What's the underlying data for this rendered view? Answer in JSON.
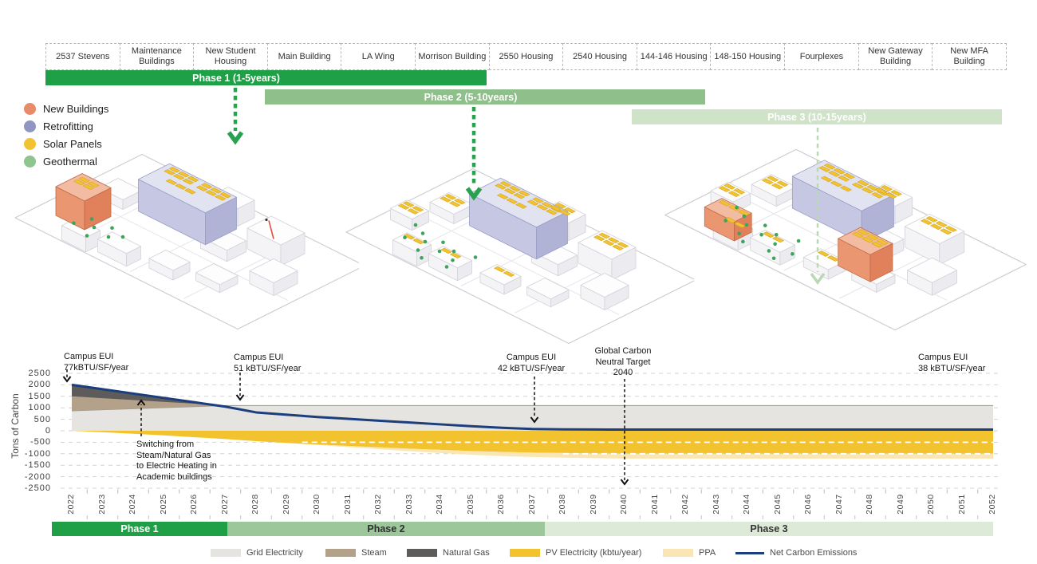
{
  "building_header": {
    "items": [
      "2537 Stevens",
      "Maintenance Buildings",
      "New Student Housing",
      "Main Building",
      "LA Wing",
      "Morrison Building",
      "2550 Housing",
      "2540 Housing",
      "144-146 Housing",
      "148-150 Housing",
      "Fourplexes",
      "New Gateway Building",
      "New MFA Building"
    ]
  },
  "phase_plan_top": [
    {
      "label": "Phase 1 (1-5years)",
      "color": "#1fa047"
    },
    {
      "label": "Phase 2 (5-10years)",
      "color": "#8fbf8b"
    },
    {
      "label": "Phase 3 (10-15years)",
      "color": "#cfe3c9"
    }
  ],
  "map_legend": {
    "items": [
      {
        "label": "New Buildings",
        "color": "#e78b69"
      },
      {
        "label": "Retrofitting",
        "color": "#9095c1"
      },
      {
        "label": "Solar Panels",
        "color": "#f2c330"
      },
      {
        "label": "Geothermal",
        "color": "#8ec58f"
      }
    ]
  },
  "chart_data": {
    "type": "area",
    "title": "",
    "xlabel": "",
    "ylabel": "Tons of Carbon",
    "ylim": [
      -2500,
      2500
    ],
    "ytick_step": 500,
    "grid": "dashed",
    "legend_position": "bottom",
    "x": [
      2022,
      2023,
      2024,
      2025,
      2026,
      2027,
      2028,
      2029,
      2030,
      2031,
      2032,
      2033,
      2034,
      2035,
      2036,
      2037,
      2038,
      2039,
      2040,
      2041,
      2042,
      2043,
      2044,
      2045,
      2046,
      2047,
      2048,
      2049,
      2050,
      2051,
      2052
    ],
    "series": [
      {
        "name": "Grid Electricity",
        "color": "#e6e4e1",
        "stack": "positive",
        "values": [
          870,
          915,
          960,
          1005,
          1050,
          1100,
          1100,
          1100,
          1100,
          1100,
          1100,
          1100,
          1100,
          1100,
          1100,
          1100,
          1100,
          1100,
          1100,
          1100,
          1100,
          1100,
          1100,
          1100,
          1100,
          1100,
          1100,
          1100,
          1100,
          1100,
          1100
        ]
      },
      {
        "name": "Steam",
        "color": "#b3a189",
        "stack": "positive",
        "values": [
          630,
          505,
          380,
          255,
          130,
          0,
          0,
          0,
          0,
          0,
          0,
          0,
          0,
          0,
          0,
          0,
          0,
          0,
          0,
          0,
          0,
          0,
          0,
          0,
          0,
          0,
          0,
          0,
          0,
          0,
          0
        ]
      },
      {
        "name": "Natural Gas",
        "color": "#5d5c5a",
        "stack": "positive",
        "values": [
          500,
          400,
          300,
          200,
          100,
          0,
          0,
          0,
          0,
          0,
          0,
          0,
          0,
          0,
          0,
          0,
          0,
          0,
          0,
          0,
          0,
          0,
          0,
          0,
          0,
          0,
          0,
          0,
          0,
          0,
          0
        ]
      },
      {
        "name": "PV Electricity (kbtu/year)",
        "color": "#f2c32f",
        "stack": "negative",
        "values": [
          0,
          -60,
          -130,
          -200,
          -280,
          -360,
          -450,
          -530,
          -600,
          -660,
          -720,
          -780,
          -830,
          -880,
          -920,
          -950,
          -970,
          -990,
          -1000,
          -1000,
          -1000,
          -1000,
          -1000,
          -1000,
          -1000,
          -1000,
          -1000,
          -1000,
          -1000,
          -1000,
          -1000
        ]
      },
      {
        "name": "PPA",
        "color": "#f9e6b4",
        "stack": "negative",
        "values": [
          0,
          0,
          0,
          0,
          0,
          0,
          0,
          0,
          -20,
          -50,
          -80,
          -110,
          -140,
          -160,
          -180,
          -190,
          -200,
          -205,
          -210,
          -210,
          -210,
          -210,
          -210,
          -210,
          -210,
          -210,
          -210,
          -210,
          -210,
          -210,
          -210
        ]
      },
      {
        "name": "Net Carbon Emissions",
        "color": "#1c3e7d",
        "type": "line",
        "values": [
          2000,
          1810,
          1620,
          1430,
          1240,
          1050,
          800,
          700,
          600,
          520,
          440,
          360,
          280,
          200,
          130,
          80,
          60,
          55,
          50,
          50,
          50,
          50,
          50,
          50,
          50,
          50,
          50,
          50,
          50,
          50,
          50
        ]
      }
    ],
    "annotations": [
      {
        "lines": [
          "Campus EUI",
          "77kBTU/SF/year"
        ],
        "year": 2022
      },
      {
        "lines": [
          "Campus EUI",
          "51 kBTU/SF/year"
        ],
        "year": 2027.5
      },
      {
        "lines": [
          "Switching from",
          "Steam/Natural Gas",
          "to Electric Heating in",
          "Academic buildings"
        ],
        "year": 2024.3
      },
      {
        "lines": [
          "Campus EUI",
          "42 kBTU/SF/year"
        ],
        "year": 2037
      },
      {
        "lines": [
          "Global Carbon",
          "Neutral Target",
          "2040"
        ],
        "year": 2040
      },
      {
        "lines": [
          "Campus EUI",
          "38 kBTU/SF/year"
        ],
        "year": 2050
      }
    ]
  },
  "phase_timeline_bottom": [
    {
      "label": "Phase 1",
      "color": "#1fa047",
      "text_color": "#ffffff"
    },
    {
      "label": "Phase 2",
      "color": "#9cc79a",
      "text_color": "#2e2e2e"
    },
    {
      "label": "Phase 3",
      "color": "#dcead7",
      "text_color": "#333333"
    }
  ],
  "chart_legend": {
    "items": [
      {
        "label": "Grid Electricity",
        "color": "#e6e4e1",
        "swatch": "box"
      },
      {
        "label": "Steam",
        "color": "#b3a189",
        "swatch": "box"
      },
      {
        "label": "Natural Gas",
        "color": "#5d5c5a",
        "swatch": "box"
      },
      {
        "label": "PV Electricity (kbtu/year)",
        "color": "#f2c32f",
        "swatch": "box"
      },
      {
        "label": "PPA",
        "color": "#f9e6b4",
        "swatch": "box"
      },
      {
        "label": "Net Carbon Emissions",
        "color": "#1c3e7d",
        "swatch": "line"
      }
    ]
  },
  "illustrations": [
    {
      "name": "campus-phase-1",
      "features": "retrofit building, new building, solar panels, geothermal"
    },
    {
      "name": "campus-phase-2",
      "features": "retrofit building, expanded solar panels, geothermal"
    },
    {
      "name": "campus-phase-3",
      "features": "retrofit building, new buildings, full solar panels, geothermal"
    }
  ],
  "arrow_colors": {
    "phase_arrow": "#2aa14f",
    "phase_arrow_light": "#b9d8b3"
  }
}
